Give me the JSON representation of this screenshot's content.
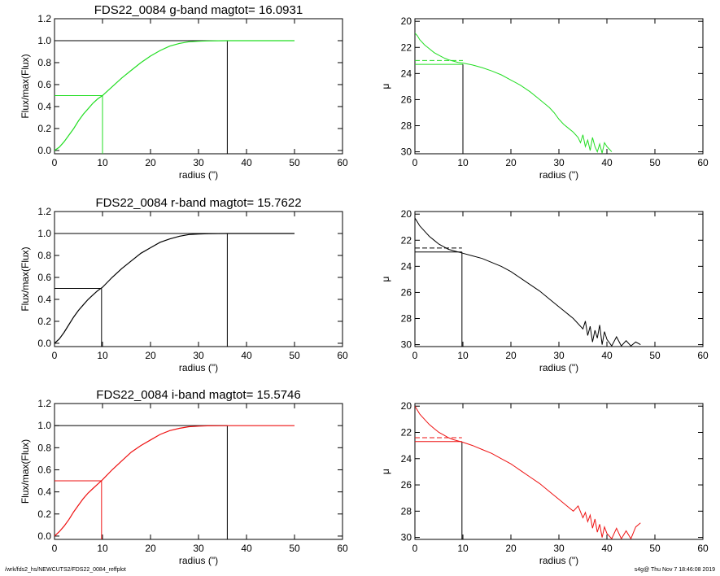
{
  "footer": {
    "left": "/wrk/fds2_hs/NEWCUTS2/FDS22_0084_reffplot",
    "right": "s4g@  Thu Nov  7 18:46:08 2019"
  },
  "chart_data": [
    {
      "type": "line",
      "title": "FDS22_0084 g-band  magtot=      16.0931",
      "xlabel": "radius (\")",
      "ylabel": "Flux/max(Flux)",
      "xlim": [
        0,
        60
      ],
      "ylim": [
        -0.03,
        1.2
      ],
      "xticks": [
        0,
        10,
        20,
        30,
        40,
        50,
        60
      ],
      "yticks": [
        0.0,
        0.2,
        0.4,
        0.6,
        0.8,
        1.0,
        1.2
      ],
      "yticklabels": [
        "0.0",
        "0.2",
        "0.4",
        "0.6",
        "0.8",
        "1.0",
        "1.2"
      ],
      "color": "#22dd22",
      "reff": 10.0,
      "rtot": 36.0,
      "series": [
        {
          "x": [
            0,
            1,
            2,
            3,
            4,
            5,
            6,
            7,
            8,
            9,
            10,
            12,
            14,
            16,
            18,
            20,
            22,
            24,
            26,
            28,
            30,
            32,
            34,
            36,
            38,
            40,
            42,
            44,
            46,
            48,
            50
          ],
          "y": [
            0.0,
            0.03,
            0.08,
            0.14,
            0.2,
            0.27,
            0.33,
            0.38,
            0.43,
            0.47,
            0.5,
            0.58,
            0.66,
            0.73,
            0.8,
            0.86,
            0.91,
            0.95,
            0.975,
            0.99,
            0.995,
            0.998,
            0.999,
            1.0,
            1.0,
            1.0,
            1.0,
            1.0,
            1.0,
            1.0,
            1.0
          ]
        }
      ]
    },
    {
      "type": "line",
      "title": "",
      "xlabel": "radius (\")",
      "ylabel": "μ",
      "xlim": [
        0,
        60
      ],
      "ylim": [
        30.15,
        19.8
      ],
      "xticks": [
        0,
        10,
        20,
        30,
        40,
        50,
        60
      ],
      "yticks": [
        20,
        22,
        24,
        26,
        28,
        30
      ],
      "yticklabels": [
        "20",
        "22",
        "24",
        "26",
        "28",
        "30"
      ],
      "color": "#22dd22",
      "reff": 10.0,
      "mu_eff": 23.3,
      "mu_eff_mean": 23.0,
      "series": [
        {
          "x": [
            0,
            0.5,
            1,
            2,
            3,
            4,
            5,
            6,
            7,
            8,
            9,
            10,
            12,
            14,
            16,
            18,
            20,
            22,
            24,
            26,
            28,
            29,
            30,
            31,
            32,
            33,
            34,
            34.5,
            35,
            35.5,
            36,
            36.5,
            37,
            37.5,
            38,
            38.5,
            39,
            39.5,
            40,
            40.5,
            41
          ],
          "y": [
            20.9,
            21.1,
            21.4,
            21.8,
            22.1,
            22.4,
            22.6,
            22.8,
            22.95,
            23.05,
            23.15,
            23.2,
            23.35,
            23.55,
            23.8,
            24.1,
            24.5,
            24.9,
            25.4,
            26.0,
            26.6,
            27.0,
            27.5,
            27.9,
            28.2,
            28.5,
            28.9,
            29.3,
            28.7,
            29.6,
            29.1,
            29.9,
            28.9,
            29.6,
            30.0,
            29.4,
            30.1,
            29.3,
            29.6,
            29.8,
            30.0
          ]
        }
      ]
    },
    {
      "type": "line",
      "title": "FDS22_0084 r-band  magtot=      15.7622",
      "xlabel": "radius (\")",
      "ylabel": "Flux/max(Flux)",
      "xlim": [
        0,
        60
      ],
      "ylim": [
        -0.03,
        1.2
      ],
      "xticks": [
        0,
        10,
        20,
        30,
        40,
        50,
        60
      ],
      "yticks": [
        0.0,
        0.2,
        0.4,
        0.6,
        0.8,
        1.0,
        1.2
      ],
      "yticklabels": [
        "0.0",
        "0.2",
        "0.4",
        "0.6",
        "0.8",
        "1.0",
        "1.2"
      ],
      "color": "#000000",
      "reff": 9.8,
      "rtot": 36.0,
      "series": [
        {
          "x": [
            0,
            1,
            2,
            3,
            4,
            5,
            6,
            7,
            8,
            9,
            10,
            12,
            14,
            16,
            18,
            20,
            22,
            24,
            26,
            28,
            30,
            32,
            34,
            36,
            38,
            40,
            42,
            44,
            46,
            48,
            50
          ],
          "y": [
            0.0,
            0.04,
            0.1,
            0.17,
            0.24,
            0.3,
            0.35,
            0.4,
            0.44,
            0.48,
            0.51,
            0.6,
            0.68,
            0.75,
            0.82,
            0.87,
            0.92,
            0.95,
            0.975,
            0.99,
            0.995,
            0.998,
            0.999,
            1.0,
            1.0,
            1.0,
            1.0,
            1.0,
            1.0,
            1.0,
            1.0
          ]
        }
      ]
    },
    {
      "type": "line",
      "title": "",
      "xlabel": "radius (\")",
      "ylabel": "μ",
      "xlim": [
        0,
        60
      ],
      "ylim": [
        30.15,
        19.8
      ],
      "xticks": [
        0,
        10,
        20,
        30,
        40,
        50,
        60
      ],
      "yticks": [
        20,
        22,
        24,
        26,
        28,
        30
      ],
      "yticklabels": [
        "20",
        "22",
        "24",
        "26",
        "28",
        "30"
      ],
      "color": "#000000",
      "reff": 9.8,
      "mu_eff": 22.9,
      "mu_eff_mean": 22.6,
      "series": [
        {
          "x": [
            0,
            0.5,
            1,
            2,
            3,
            4,
            5,
            6,
            7,
            8,
            9,
            10,
            12,
            14,
            16,
            18,
            20,
            22,
            24,
            26,
            28,
            30,
            31,
            32,
            33,
            34,
            35,
            35.5,
            36,
            36.5,
            37,
            37.5,
            38,
            38.5,
            39,
            39.5,
            40,
            41,
            42,
            43,
            44,
            45,
            46,
            47
          ],
          "y": [
            20.3,
            20.6,
            20.9,
            21.3,
            21.7,
            22.0,
            22.3,
            22.5,
            22.7,
            22.8,
            22.9,
            23.0,
            23.2,
            23.4,
            23.7,
            24.0,
            24.4,
            24.9,
            25.4,
            25.9,
            26.5,
            27.1,
            27.4,
            27.7,
            28.0,
            28.4,
            28.8,
            28.2,
            29.3,
            28.6,
            29.8,
            28.9,
            29.5,
            28.5,
            30.0,
            29.0,
            29.6,
            30.1,
            29.4,
            30.1,
            29.7,
            30.1,
            29.8,
            30.0
          ]
        }
      ]
    },
    {
      "type": "line",
      "title": "FDS22_0084 i-band  magtot=      15.5746",
      "xlabel": "radius (\")",
      "ylabel": "Flux/max(Flux)",
      "xlim": [
        0,
        60
      ],
      "ylim": [
        -0.03,
        1.2
      ],
      "xticks": [
        0,
        10,
        20,
        30,
        40,
        50,
        60
      ],
      "yticks": [
        0.0,
        0.2,
        0.4,
        0.6,
        0.8,
        1.0,
        1.2
      ],
      "yticklabels": [
        "0.0",
        "0.2",
        "0.4",
        "0.6",
        "0.8",
        "1.0",
        "1.2"
      ],
      "color": "#ee1111",
      "reff": 9.8,
      "rtot": 36.0,
      "series": [
        {
          "x": [
            0,
            1,
            2,
            3,
            4,
            5,
            6,
            7,
            8,
            9,
            10,
            12,
            14,
            16,
            18,
            20,
            22,
            24,
            26,
            28,
            30,
            32,
            34,
            36,
            38,
            40,
            42,
            44,
            46,
            48,
            50
          ],
          "y": [
            0.0,
            0.04,
            0.09,
            0.15,
            0.22,
            0.28,
            0.34,
            0.39,
            0.43,
            0.47,
            0.51,
            0.6,
            0.68,
            0.76,
            0.82,
            0.87,
            0.92,
            0.955,
            0.975,
            0.99,
            0.995,
            0.998,
            0.999,
            1.0,
            1.0,
            1.0,
            1.0,
            1.0,
            1.0,
            1.0,
            1.0
          ]
        }
      ]
    },
    {
      "type": "line",
      "title": "",
      "xlabel": "radius (\")",
      "ylabel": "μ",
      "xlim": [
        0,
        60
      ],
      "ylim": [
        30.15,
        19.8
      ],
      "xticks": [
        0,
        10,
        20,
        30,
        40,
        50,
        60
      ],
      "yticks": [
        20,
        22,
        24,
        26,
        28,
        30
      ],
      "yticklabels": [
        "20",
        "22",
        "24",
        "26",
        "28",
        "30"
      ],
      "color": "#ee1111",
      "reff": 9.8,
      "mu_eff": 22.7,
      "mu_eff_mean": 22.4,
      "series": [
        {
          "x": [
            0,
            0.5,
            1,
            2,
            3,
            4,
            5,
            6,
            7,
            8,
            9,
            10,
            12,
            14,
            16,
            18,
            20,
            22,
            24,
            26,
            28,
            30,
            32,
            33,
            34,
            35,
            35.5,
            36,
            36.5,
            37,
            37.5,
            38,
            38.5,
            39,
            39.5,
            40,
            41,
            42,
            43,
            44,
            45,
            46,
            47
          ],
          "y": [
            20.0,
            20.3,
            20.6,
            21.0,
            21.4,
            21.7,
            22.0,
            22.2,
            22.4,
            22.55,
            22.65,
            22.75,
            23.0,
            23.3,
            23.6,
            24.0,
            24.4,
            24.9,
            25.4,
            25.9,
            26.5,
            27.1,
            27.7,
            28.0,
            27.6,
            28.5,
            28.1,
            28.8,
            28.3,
            29.3,
            28.6,
            29.6,
            29.0,
            30.0,
            29.2,
            29.7,
            30.1,
            29.3,
            30.1,
            29.5,
            30.1,
            29.2,
            28.9
          ]
        }
      ]
    }
  ]
}
